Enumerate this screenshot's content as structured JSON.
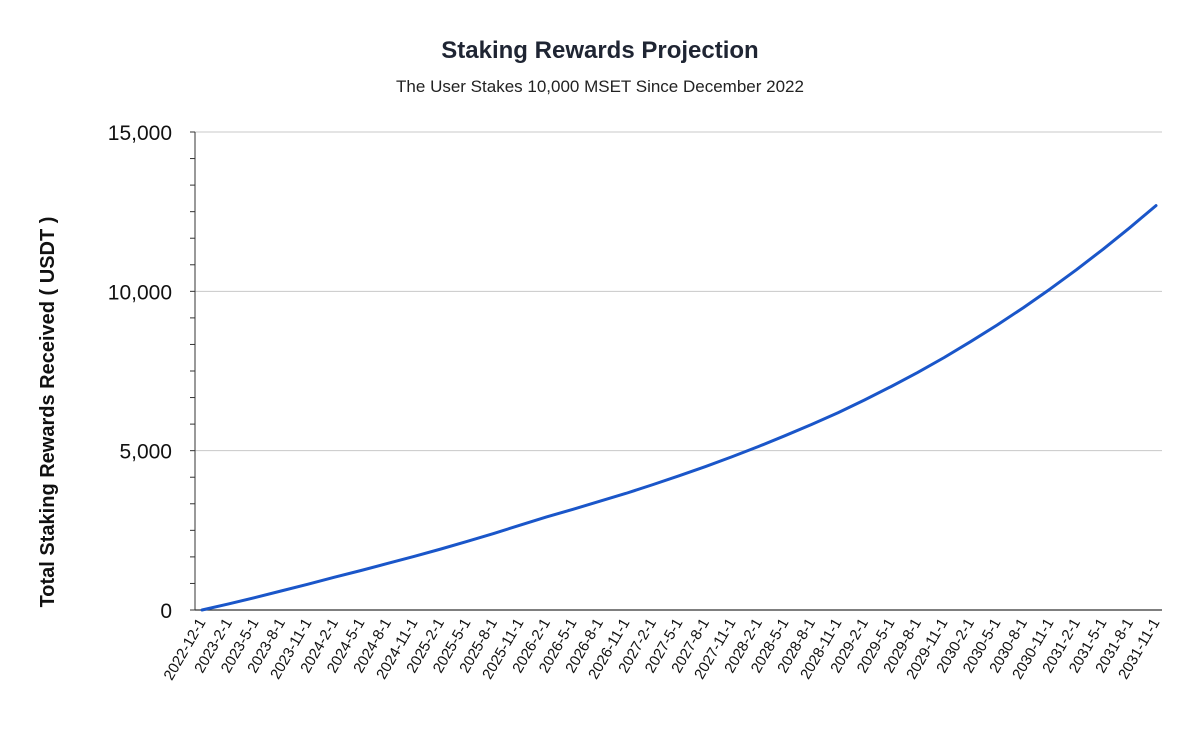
{
  "chart_data": {
    "type": "line",
    "title": "Staking Rewards Projection",
    "subtitle": "The User Stakes 10,000 MSET Since December 2022",
    "xlabel": "",
    "ylabel": "Total Staking Rewards Received ( USDT )",
    "ylim": [
      0,
      15000
    ],
    "yticks": [
      0,
      5000,
      10000,
      15000
    ],
    "ytick_labels": [
      "0",
      "5,000",
      "10,000",
      "15,000"
    ],
    "grid": true,
    "legend": "none",
    "line_color": "#1a56c9",
    "x": [
      "2022-12-1",
      "2023-2-1",
      "2023-5-1",
      "2023-8-1",
      "2023-11-1",
      "2024-2-1",
      "2024-5-1",
      "2024-8-1",
      "2024-11-1",
      "2025-2-1",
      "2025-5-1",
      "2025-8-1",
      "2025-11-1",
      "2026-2-1",
      "2026-5-1",
      "2026-8-1",
      "2026-11-1",
      "2027-2-1",
      "2027-5-1",
      "2027-8-1",
      "2027-11-1",
      "2028-2-1",
      "2028-5-1",
      "2028-8-1",
      "2028-11-1",
      "2029-2-1",
      "2029-5-1",
      "2029-8-1",
      "2029-11-1",
      "2030-2-1",
      "2030-5-1",
      "2030-8-1",
      "2030-11-1",
      "2031-2-1",
      "2031-5-1",
      "2031-8-1",
      "2031-11-1"
    ],
    "series": [
      {
        "values": [
          0,
          190,
          390,
          600,
          810,
          1030,
          1240,
          1460,
          1680,
          1910,
          2150,
          2400,
          2660,
          2920,
          3160,
          3410,
          3660,
          3930,
          4210,
          4500,
          4810,
          5130,
          5470,
          5820,
          6190,
          6590,
          7010,
          7450,
          7920,
          8420,
          8940,
          9490,
          10070,
          10680,
          11320,
          11990,
          12690
        ]
      }
    ]
  }
}
